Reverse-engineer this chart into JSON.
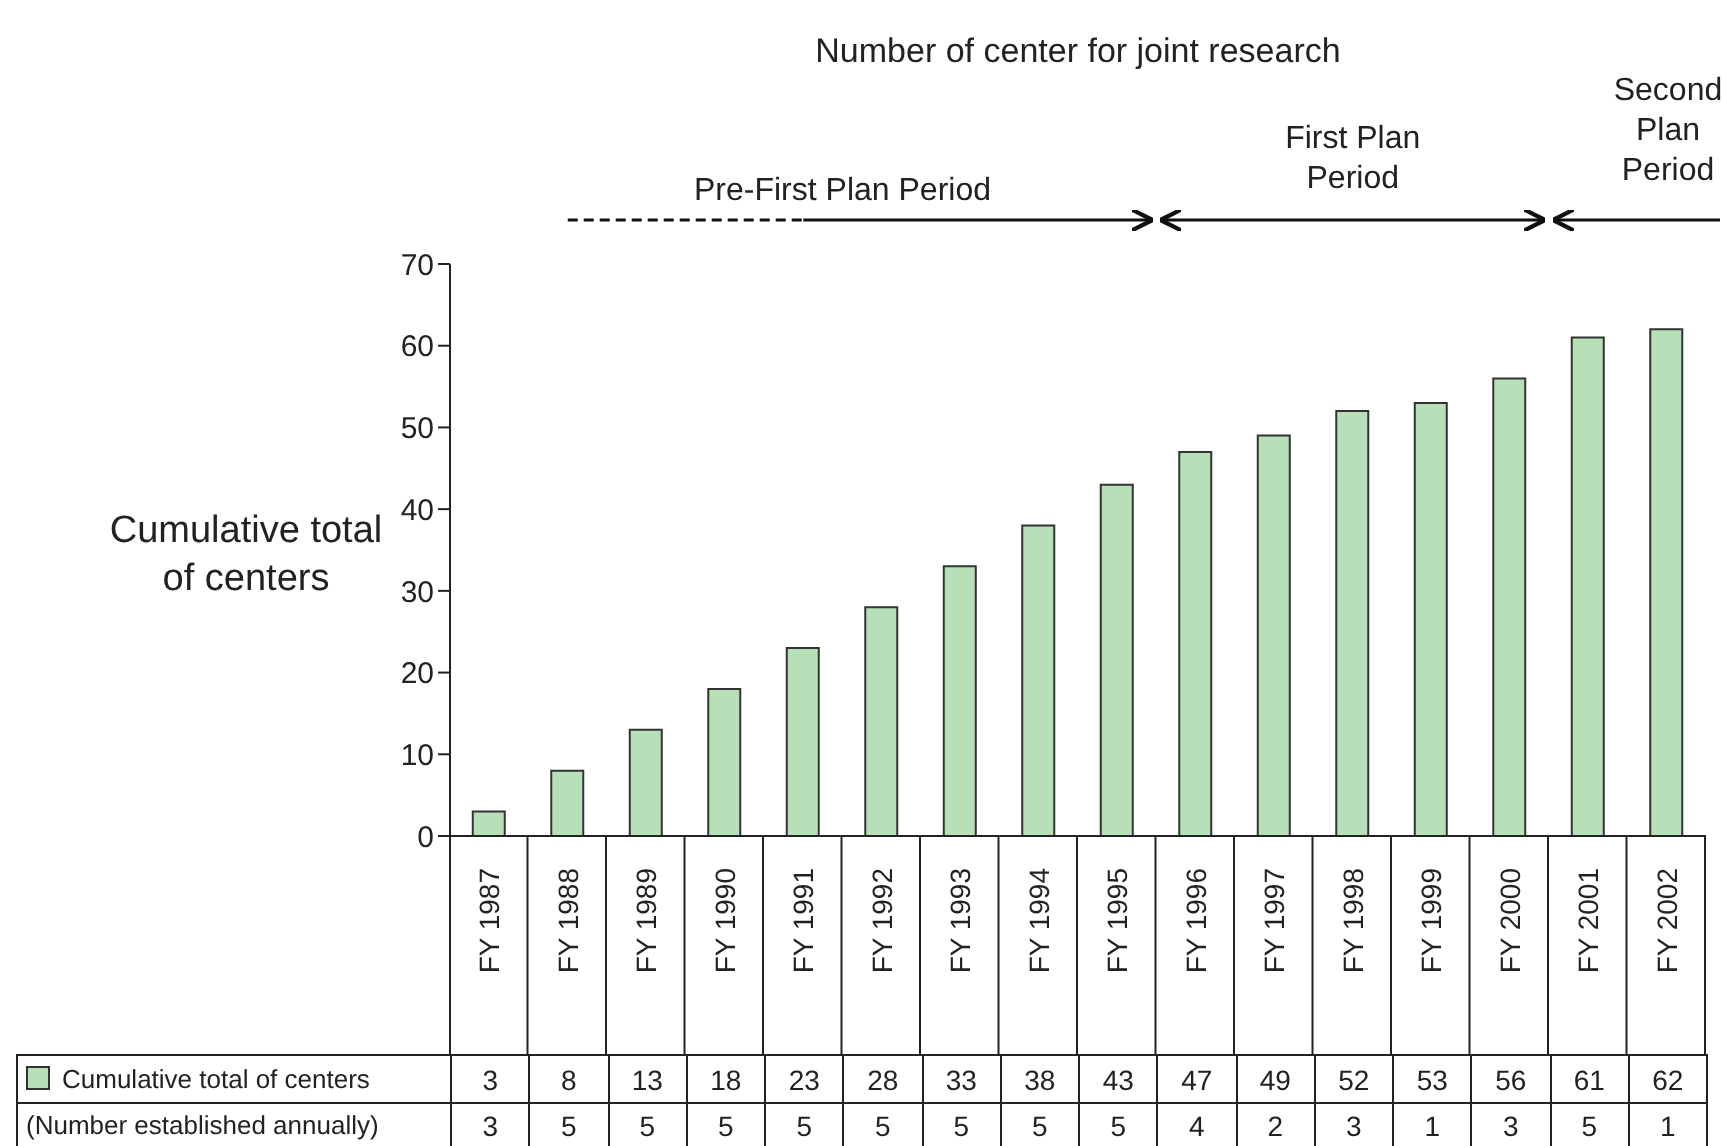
{
  "chart_data": {
    "type": "bar",
    "title": "Number of center for joint research",
    "ylabel": "Cumulative total of centers",
    "categories": [
      "FY 1987",
      "FY 1988",
      "FY 1989",
      "FY 1990",
      "FY 1991",
      "FY 1992",
      "FY 1993",
      "FY 1994",
      "FY 1995",
      "FY 1996",
      "FY 1997",
      "FY 1998",
      "FY 1999",
      "FY 2000",
      "FY 2001",
      "FY 2002"
    ],
    "series": [
      {
        "name": "Cumulative total of centers",
        "color": "#b8e0b8",
        "values": [
          3,
          8,
          13,
          18,
          23,
          28,
          33,
          38,
          43,
          47,
          49,
          52,
          53,
          56,
          61,
          62
        ]
      }
    ],
    "ylim": [
      0,
      70
    ],
    "yticks": [
      0,
      10,
      20,
      30,
      40,
      50,
      60,
      70
    ],
    "grid": false,
    "legend": "bottom",
    "data_labels": true,
    "annotations": [
      "Pre-First Plan Period",
      "First Plan Period",
      "Second Plan Period",
      "(Number established annually)",
      "3",
      "5",
      "5",
      "5",
      "5",
      "5",
      "5",
      "5",
      "5",
      "4",
      "2",
      "3",
      "1",
      "3",
      "5",
      "1"
    ]
  }
}
